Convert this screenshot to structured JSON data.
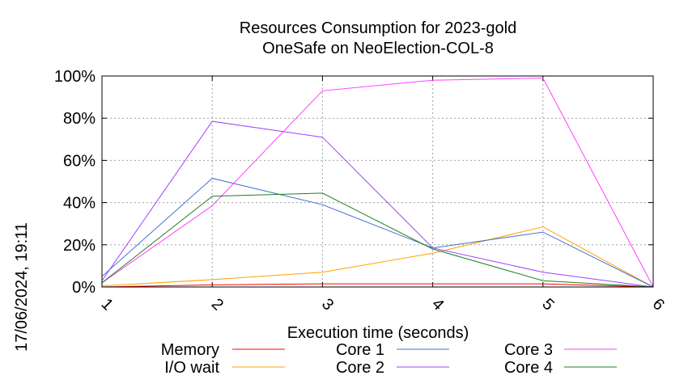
{
  "chart_data": {
    "type": "line",
    "title": "Resources Consumption for 2023-gold",
    "subtitle": "OneSafe on NeoElection-COL-8",
    "xlabel": "Execution time (seconds)",
    "ylabel": "",
    "side_label": "17/06/2024, 19:11",
    "x": [
      1,
      2,
      3,
      4,
      5,
      6
    ],
    "xlim": [
      1,
      6
    ],
    "ylim": [
      0,
      100
    ],
    "y_ticks": [
      "0%",
      "20%",
      "40%",
      "60%",
      "80%",
      "100%"
    ],
    "x_ticks": [
      "1",
      "2",
      "3",
      "4",
      "5",
      "6"
    ],
    "grid": true,
    "legend_position": "bottom",
    "series": [
      {
        "name": "Memory",
        "color": "#ff0000",
        "values": [
          0,
          1,
          1.5,
          1.5,
          1.5,
          0
        ]
      },
      {
        "name": "I/O wait",
        "color": "#ffa000",
        "values": [
          0.5,
          3.5,
          7,
          16,
          28.5,
          0
        ]
      },
      {
        "name": "Core 1",
        "color": "#4070d0",
        "values": [
          5,
          51.5,
          39,
          18.5,
          26,
          0
        ]
      },
      {
        "name": "Core 2",
        "color": "#a040ff",
        "values": [
          3,
          78.5,
          71,
          18.5,
          7,
          0
        ]
      },
      {
        "name": "Core 3",
        "color": "#ff40ff",
        "values": [
          2,
          38.5,
          93,
          98,
          99,
          0
        ]
      },
      {
        "name": "Core 4",
        "color": "#208020",
        "values": [
          2,
          43,
          44.5,
          18,
          3,
          0
        ]
      }
    ]
  }
}
